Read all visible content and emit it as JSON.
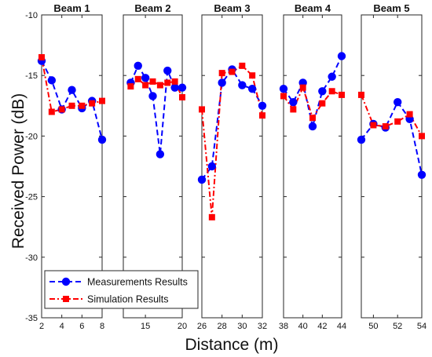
{
  "chart_data": {
    "type": "line",
    "xlabel": "Distance (m)",
    "ylabel": "Received Power (dB)",
    "ylim": [
      -35,
      -10
    ],
    "yticks": [
      -35,
      -30,
      -25,
      -20,
      -15,
      -10
    ],
    "grid": false,
    "legend_position": "bottom-left",
    "legend": [
      {
        "label": "Measurements Results",
        "color": "#0000ff",
        "marker": "circle",
        "dash": "dashed"
      },
      {
        "label": "Simulation Results",
        "color": "#ff0000",
        "marker": "square",
        "dash": "dash-dot"
      }
    ],
    "panels": [
      {
        "title": "Beam 1",
        "xlim": [
          2,
          8
        ],
        "xticks": [
          2,
          4,
          6,
          8
        ],
        "series": [
          {
            "name": "Measurements Results",
            "x": [
              2,
              3,
              4,
              5,
              6,
              7,
              8
            ],
            "y": [
              -13.8,
              -15.4,
              -17.8,
              -16.2,
              -17.7,
              -17.1,
              -20.3
            ]
          },
          {
            "name": "Simulation Results",
            "x": [
              2,
              3,
              4,
              5,
              6,
              7,
              8
            ],
            "y": [
              -13.5,
              -18.0,
              -17.8,
              -17.5,
              -17.5,
              -17.3,
              -17.1
            ]
          }
        ]
      },
      {
        "title": "Beam 2",
        "xlim": [
          12,
          20
        ],
        "xticks": [
          15,
          20
        ],
        "series": [
          {
            "name": "Measurements Results",
            "x": [
              13,
              14,
              15,
              16,
              17,
              18,
              19,
              20
            ],
            "y": [
              -15.6,
              -14.2,
              -15.2,
              -16.7,
              -21.5,
              -14.6,
              -16.0,
              -16.0
            ]
          },
          {
            "name": "Simulation Results",
            "x": [
              13,
              14,
              15,
              16,
              17,
              18,
              19,
              20
            ],
            "y": [
              -15.9,
              -15.3,
              -15.8,
              -15.5,
              -15.8,
              -15.6,
              -15.5,
              -16.8
            ]
          }
        ]
      },
      {
        "title": "Beam 3",
        "xlim": [
          26,
          32
        ],
        "xticks": [
          26,
          28,
          30,
          32
        ],
        "series": [
          {
            "name": "Measurements Results",
            "x": [
              26,
              27,
              28,
              29,
              30,
              31,
              32
            ],
            "y": [
              -23.6,
              -22.5,
              -15.6,
              -14.5,
              -15.8,
              -16.1,
              -17.5
            ]
          },
          {
            "name": "Simulation Results",
            "x": [
              26,
              27,
              28,
              29,
              30,
              31,
              32
            ],
            "y": [
              -17.8,
              -26.7,
              -14.8,
              -14.7,
              -14.2,
              -15.0,
              -18.3
            ]
          }
        ]
      },
      {
        "title": "Beam 4",
        "xlim": [
          38,
          44
        ],
        "xticks": [
          38,
          40,
          42,
          44
        ],
        "series": [
          {
            "name": "Measurements Results",
            "x": [
              38,
              39,
              40,
              41,
              42,
              43,
              44
            ],
            "y": [
              -16.1,
              -17.2,
              -15.6,
              -19.2,
              -16.3,
              -15.1,
              -13.4
            ]
          },
          {
            "name": "Simulation Results",
            "x": [
              38,
              39,
              40,
              41,
              42,
              43,
              44
            ],
            "y": [
              -16.7,
              -17.8,
              -16.0,
              -18.5,
              -17.3,
              -16.3,
              -16.6
            ]
          }
        ]
      },
      {
        "title": "Beam 5",
        "xlim": [
          49,
          54
        ],
        "xticks": [
          50,
          52,
          54
        ],
        "series": [
          {
            "name": "Measurements Results",
            "x": [
              49,
              50,
              51,
              52,
              53,
              54
            ],
            "y": [
              -20.3,
              -19.0,
              -19.3,
              -17.2,
              -18.6,
              -23.2
            ]
          },
          {
            "name": "Simulation Results",
            "x": [
              49,
              50,
              51,
              52,
              53,
              54
            ],
            "y": [
              -16.6,
              -19.1,
              -19.2,
              -18.8,
              -18.2,
              -20.0
            ]
          }
        ]
      }
    ]
  }
}
